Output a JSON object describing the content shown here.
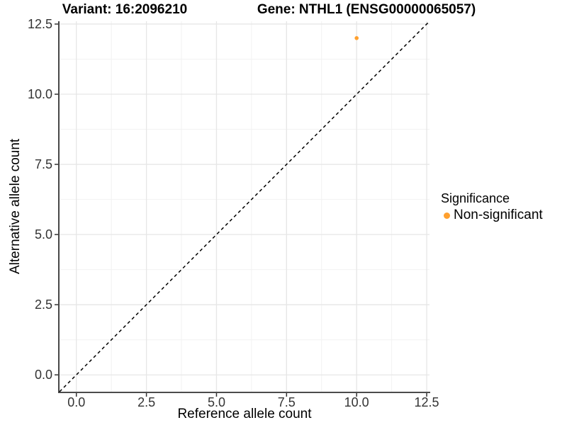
{
  "titles": {
    "left": "Variant: 16:2096210",
    "right": "Gene: NTHL1 (ENSG00000065057)"
  },
  "legend": {
    "title": "Significance",
    "items": [
      {
        "label": "Non-significant",
        "color": "#FFA02E"
      }
    ]
  },
  "colors": {
    "background": "#ffffff",
    "major_grid": "#E6E6E6",
    "minor_grid": "#F2F2F2",
    "axis_line": "#333333",
    "tick_label": "#333333",
    "reference_line": "#000000",
    "point": "#FFA02E"
  },
  "chart_data": {
    "type": "scatter",
    "title": "Variant: 16:2096210   Gene: NTHL1 (ENSG00000065057)",
    "xlabel": "Reference allele count",
    "ylabel": "Alternative allele count",
    "xlim": [
      -0.6,
      12.6
    ],
    "ylim": [
      -0.6,
      12.6
    ],
    "x_ticks": [
      0.0,
      2.5,
      5.0,
      7.5,
      10.0,
      12.5
    ],
    "y_ticks": [
      0.0,
      2.5,
      5.0,
      7.5,
      10.0,
      12.5
    ],
    "x_tick_labels": [
      "0.0",
      "2.5",
      "5.0",
      "7.5",
      "10.0",
      "12.5"
    ],
    "y_tick_labels": [
      "0.0",
      "2.5",
      "5.0",
      "7.5",
      "10.0",
      "12.5"
    ],
    "minor_ticks": [
      1.25,
      3.75,
      6.25,
      8.75,
      11.25
    ],
    "grid": "major+minor",
    "legend_position": "right",
    "reference_line": {
      "type": "identity y=x",
      "style": "dashed",
      "color": "#000000"
    },
    "series": [
      {
        "name": "Non-significant",
        "color": "#FFA02E",
        "points": [
          {
            "x": 10,
            "y": 12
          }
        ]
      }
    ]
  }
}
